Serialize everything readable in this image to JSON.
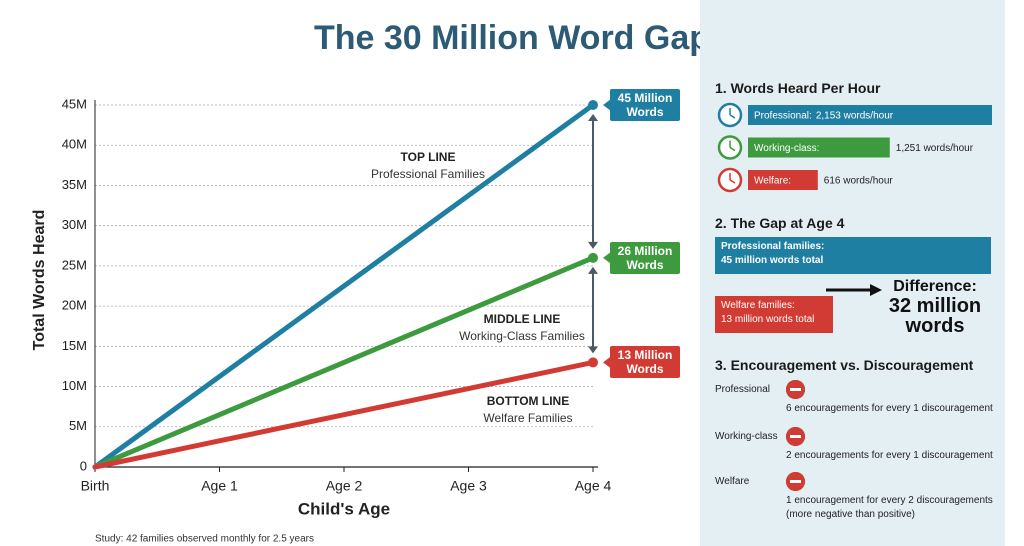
{
  "title": "The 30 Million Word Gap",
  "chart_data": [
    {
      "type": "line",
      "xlabel": "Child's Age",
      "ylabel": "Total Words Heard",
      "categories": [
        "Birth",
        "Age 1",
        "Age 2",
        "Age 3",
        "Age 4"
      ],
      "ylim": [
        0,
        45000000
      ],
      "yticks": [
        0,
        {
          "value": 5000000,
          "label": "5M"
        },
        {
          "value": 10000000,
          "label": "10M"
        },
        {
          "value": 15000000,
          "label": "15M"
        },
        {
          "value": 20000000,
          "label": "20M"
        },
        {
          "value": 25000000,
          "label": "25M"
        },
        {
          "value": 30000000,
          "label": "30M"
        },
        {
          "value": 35000000,
          "label": "35M"
        },
        {
          "value": 40000000,
          "label": "40M"
        },
        {
          "value": 45000000,
          "label": "45M"
        }
      ],
      "grid": true,
      "series": [
        {
          "name": "Professional Families",
          "line_label": "TOP LINE",
          "color": "#1f7fa3",
          "values": [
            0,
            11250000,
            22500000,
            33750000,
            45000000
          ],
          "end_label": "45 Million Words"
        },
        {
          "name": "Working-Class Families",
          "line_label": "MIDDLE LINE",
          "color": "#3e9a3e",
          "values": [
            0,
            6500000,
            13000000,
            19500000,
            26000000
          ],
          "end_label": "26 Million Words"
        },
        {
          "name": "Welfare Families",
          "line_label": "BOTTOM LINE",
          "color": "#d23b34",
          "values": [
            0,
            3250000,
            6500000,
            9750000,
            13000000
          ],
          "end_label": "13 Million Words"
        }
      ],
      "footnote": "Study: 42 families observed monthly for 2.5 years"
    },
    {
      "type": "bar",
      "orientation": "horizontal",
      "title": "1. Words Heard Per Hour",
      "categories": [
        "Professional:",
        "Working-class:",
        "Welfare:"
      ],
      "values": [
        2153,
        1251,
        616
      ],
      "value_labels": [
        "2,153 words/hour",
        "1,251 words/hour",
        "616 words/hour"
      ],
      "colors": [
        "#1f7fa3",
        "#3e9a3e",
        "#d23b34"
      ]
    }
  ],
  "gap": {
    "title": "2. The Gap at Age 4",
    "professional": {
      "label": "Professional families:",
      "text": "45 million words total"
    },
    "welfare": {
      "label": "Welfare families:",
      "text": "13 million words total"
    },
    "difference": {
      "label": "Difference:",
      "text": "32 million words"
    }
  },
  "encouragement": {
    "title": "3. Encouragement vs. Discouragement",
    "rows": [
      {
        "group": "Professional",
        "encouragements": 6,
        "discouragements": 1,
        "text": "6 encouragements for every 1 discouragement"
      },
      {
        "group": "Working-class",
        "encouragements": 2,
        "discouragements": 1,
        "text": "2 encouragements for every 1 discouragement"
      },
      {
        "group": "Welfare",
        "encouragements": 1,
        "discouragements": 2,
        "text": "1 encouragement for every 2 discouragements",
        "note": "(more negative than positive)"
      }
    ]
  }
}
